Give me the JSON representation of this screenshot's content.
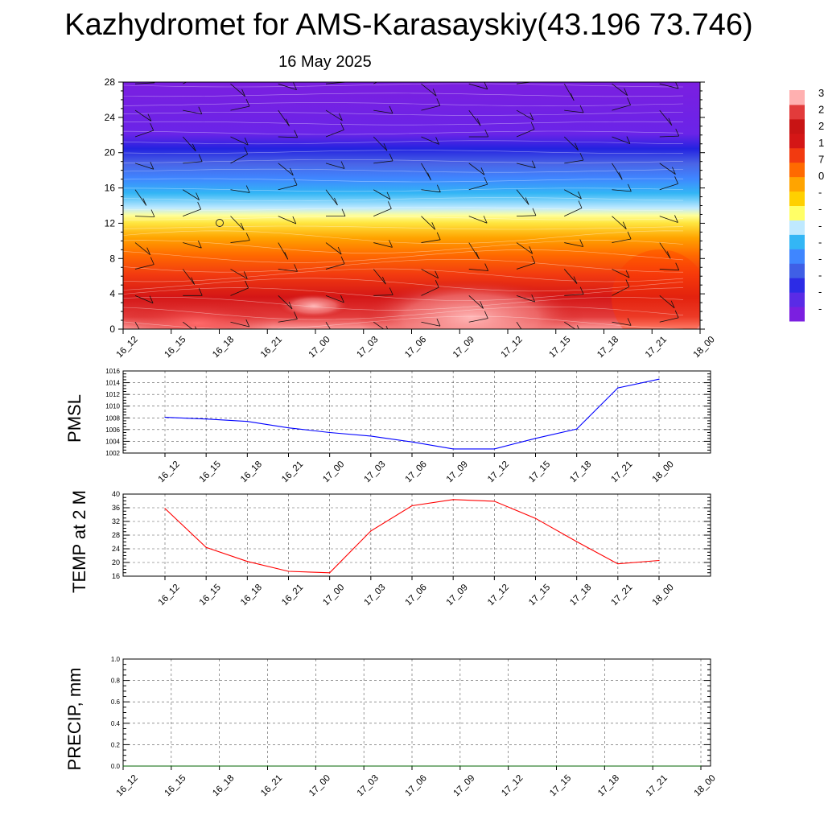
{
  "title": "Kazhydromet for AMS-Karasayskiy(43.196 73.746)",
  "subtitle": "16 May 2025",
  "time_labels": [
    "16_12",
    "16_15",
    "16_18",
    "16_21",
    "17_00",
    "17_03",
    "17_06",
    "17_09",
    "17_12",
    "17_15",
    "17_18",
    "17_21",
    "18_00"
  ],
  "colorbar_labels": [
    "3",
    "2",
    "2",
    "1",
    "7",
    "0",
    "-",
    "-",
    "-",
    "-",
    "-",
    "-",
    "-",
    "-"
  ],
  "chart_data": [
    {
      "type": "heatmap",
      "title": "",
      "xlabel": "",
      "ylabel": "",
      "categories": [
        "16_12",
        "16_15",
        "16_18",
        "16_21",
        "17_00",
        "17_03",
        "17_06",
        "17_09",
        "17_12",
        "17_15",
        "17_18",
        "17_21",
        "18_00"
      ],
      "yticks": [
        0,
        4,
        8,
        12,
        16,
        20,
        24,
        28
      ],
      "ylim": [
        0,
        28
      ],
      "legend": "right",
      "colors": [
        "#7b1fe0",
        "#2c2ce6",
        "#3f7bff",
        "#33b6f5",
        "#bfe9ff",
        "#ffff66",
        "#ffb000",
        "#ff5a00",
        "#e61010",
        "#c81414",
        "#ffa8a8"
      ]
    },
    {
      "type": "line",
      "ylabel": "PMSL",
      "categories": [
        "16_12",
        "16_15",
        "16_18",
        "16_21",
        "17_00",
        "17_03",
        "17_06",
        "17_09",
        "17_12",
        "17_15",
        "17_18",
        "17_21",
        "18_00"
      ],
      "yticks": [
        1002,
        1004,
        1006,
        1008,
        1010,
        1012,
        1014,
        1016
      ],
      "ylim": [
        1002,
        1016
      ],
      "grid": true,
      "color": "#0000ff",
      "series": [
        {
          "values": [
            1008.1,
            1007.8,
            1007.4,
            1006.3,
            1005.5,
            1004.9,
            1003.9,
            1002.7,
            1002.7,
            1004.5,
            1006.1,
            1013.1,
            1014.6
          ]
        }
      ]
    },
    {
      "type": "line",
      "ylabel": "TEMP at 2 M",
      "categories": [
        "16_12",
        "16_15",
        "16_18",
        "16_21",
        "17_00",
        "17_03",
        "17_06",
        "17_09",
        "17_12",
        "17_15",
        "17_18",
        "17_21",
        "18_00"
      ],
      "yticks": [
        16,
        20,
        24,
        28,
        32,
        36,
        40
      ],
      "ylim": [
        16,
        40
      ],
      "grid": true,
      "color": "#ff0000",
      "series": [
        {
          "values": [
            35.8,
            24.4,
            20.3,
            17.4,
            17.0,
            29.2,
            36.6,
            38.4,
            37.9,
            32.9,
            26.1,
            19.6,
            20.6
          ]
        }
      ]
    },
    {
      "type": "line",
      "ylabel": "PRECIP, mm",
      "categories": [
        "16_12",
        "16_15",
        "16_18",
        "16_21",
        "17_00",
        "17_03",
        "17_06",
        "17_09",
        "17_12",
        "17_15",
        "17_18",
        "17_21",
        "18_00"
      ],
      "yticks": [
        0.0,
        0.2,
        0.4,
        0.6,
        0.8,
        1.0
      ],
      "ytick_labels": [
        "0.0",
        "0.2",
        "0.4",
        "0.6",
        "0.8",
        "1.0"
      ],
      "ylim": [
        0,
        1
      ],
      "grid": true,
      "color": "#006400",
      "series": [
        {
          "values": [
            0,
            0,
            0,
            0,
            0,
            0,
            0,
            0,
            0,
            0,
            0,
            0,
            0
          ]
        }
      ]
    }
  ]
}
